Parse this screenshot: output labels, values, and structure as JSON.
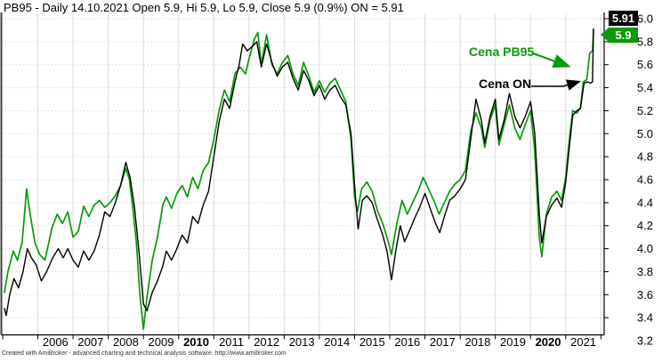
{
  "header": {
    "title": "PB95 - Daily 14.10.2021 Open 5.9, Hi 5.9, Lo 5.9, Close 5.9 (0.9%) ON = 5.91"
  },
  "annotations": {
    "pb95_label": "Cena PB95",
    "on_label": "Cena ON"
  },
  "price_tags": {
    "on": {
      "value": "5.91",
      "bg": "#000000",
      "fg": "#ffffff"
    },
    "pb95": {
      "value": "5.9",
      "bg": "#0a9a0a",
      "fg": "#ffffff"
    }
  },
  "footer": {
    "credit": "Created with AmiBroker - advanced charting and technical analysis software. http://www.amibroker.com"
  },
  "colors": {
    "pb95_line": "#0a9a0a",
    "on_line": "#000000",
    "grid": "#d9d9d9",
    "axis": "#000000",
    "tick_label": "#000000"
  },
  "chart_data": {
    "type": "line",
    "title": "PB95 - Daily 14.10.2021 Open 5.9, Hi 5.9, Lo 5.9, Close 5.9 (0.9%) ON = 5.91",
    "xlabel": "",
    "ylabel": "",
    "x_range_years": [
      2005.0,
      2022.1
    ],
    "ylim": [
      3.2,
      6.0
    ],
    "y_tick_step": 0.2,
    "y_ticks": [
      6.0,
      5.8,
      5.6,
      5.4,
      5.2,
      5.0,
      4.8,
      4.6,
      4.4,
      4.2,
      4.0,
      3.8,
      3.6,
      3.4,
      3.2
    ],
    "x_ticks": [
      {
        "year": 2006,
        "label": "2006",
        "bold": false
      },
      {
        "year": 2007,
        "label": "2007",
        "bold": false
      },
      {
        "year": 2008,
        "label": "2008",
        "bold": false
      },
      {
        "year": 2009,
        "label": "2009",
        "bold": false
      },
      {
        "year": 2010,
        "label": "2010",
        "bold": true
      },
      {
        "year": 2011,
        "label": "2011",
        "bold": false
      },
      {
        "year": 2012,
        "label": "2012",
        "bold": false
      },
      {
        "year": 2013,
        "label": "2013",
        "bold": false
      },
      {
        "year": 2014,
        "label": "2014",
        "bold": false
      },
      {
        "year": 2015,
        "label": "2015",
        "bold": false
      },
      {
        "year": 2016,
        "label": "2016",
        "bold": false
      },
      {
        "year": 2017,
        "label": "2017",
        "bold": false
      },
      {
        "year": 2018,
        "label": "2018",
        "bold": false
      },
      {
        "year": 2019,
        "label": "2019",
        "bold": false
      },
      {
        "year": 2020,
        "label": "2020",
        "bold": true
      },
      {
        "year": 2021,
        "label": "2021",
        "bold": false
      }
    ],
    "grid": {
      "horizontal": "dotted",
      "vertical": "solid"
    },
    "legend_position": "annotated-arrows",
    "series": [
      {
        "name": "Cena PB95",
        "color": "#0a9a0a",
        "last_value": 5.9,
        "data": [
          [
            2005.05,
            3.62
          ],
          [
            2005.15,
            3.8
          ],
          [
            2005.3,
            3.98
          ],
          [
            2005.42,
            3.9
          ],
          [
            2005.55,
            4.05
          ],
          [
            2005.68,
            4.52
          ],
          [
            2005.78,
            4.3
          ],
          [
            2005.92,
            4.05
          ],
          [
            2006.05,
            3.95
          ],
          [
            2006.2,
            3.9
          ],
          [
            2006.4,
            4.18
          ],
          [
            2006.55,
            4.3
          ],
          [
            2006.7,
            4.22
          ],
          [
            2006.85,
            4.32
          ],
          [
            2007.0,
            4.1
          ],
          [
            2007.15,
            4.15
          ],
          [
            2007.3,
            4.37
          ],
          [
            2007.45,
            4.28
          ],
          [
            2007.6,
            4.38
          ],
          [
            2007.75,
            4.42
          ],
          [
            2007.9,
            4.36
          ],
          [
            2008.05,
            4.4
          ],
          [
            2008.2,
            4.46
          ],
          [
            2008.35,
            4.55
          ],
          [
            2008.5,
            4.7
          ],
          [
            2008.6,
            4.6
          ],
          [
            2008.7,
            4.35
          ],
          [
            2008.8,
            4.05
          ],
          [
            2008.9,
            3.6
          ],
          [
            2009.0,
            3.3
          ],
          [
            2009.1,
            3.58
          ],
          [
            2009.25,
            3.9
          ],
          [
            2009.4,
            4.1
          ],
          [
            2009.55,
            4.38
          ],
          [
            2009.65,
            4.45
          ],
          [
            2009.8,
            4.35
          ],
          [
            2009.95,
            4.48
          ],
          [
            2010.1,
            4.55
          ],
          [
            2010.25,
            4.45
          ],
          [
            2010.4,
            4.62
          ],
          [
            2010.55,
            4.52
          ],
          [
            2010.7,
            4.68
          ],
          [
            2010.85,
            4.75
          ],
          [
            2011.0,
            4.95
          ],
          [
            2011.15,
            5.2
          ],
          [
            2011.3,
            5.38
          ],
          [
            2011.45,
            5.28
          ],
          [
            2011.6,
            5.52
          ],
          [
            2011.75,
            5.58
          ],
          [
            2011.9,
            5.52
          ],
          [
            2012.0,
            5.65
          ],
          [
            2012.15,
            5.82
          ],
          [
            2012.25,
            5.88
          ],
          [
            2012.35,
            5.6
          ],
          [
            2012.5,
            5.86
          ],
          [
            2012.65,
            5.6
          ],
          [
            2012.8,
            5.52
          ],
          [
            2012.95,
            5.62
          ],
          [
            2013.1,
            5.68
          ],
          [
            2013.25,
            5.52
          ],
          [
            2013.4,
            5.42
          ],
          [
            2013.55,
            5.62
          ],
          [
            2013.7,
            5.5
          ],
          [
            2013.85,
            5.36
          ],
          [
            2014.0,
            5.46
          ],
          [
            2014.15,
            5.36
          ],
          [
            2014.3,
            5.44
          ],
          [
            2014.45,
            5.48
          ],
          [
            2014.6,
            5.38
          ],
          [
            2014.75,
            5.28
          ],
          [
            2014.9,
            4.95
          ],
          [
            2015.0,
            4.45
          ],
          [
            2015.08,
            4.32
          ],
          [
            2015.2,
            4.52
          ],
          [
            2015.35,
            4.58
          ],
          [
            2015.5,
            4.5
          ],
          [
            2015.65,
            4.33
          ],
          [
            2015.8,
            4.22
          ],
          [
            2015.92,
            4.1
          ],
          [
            2016.05,
            3.95
          ],
          [
            2016.2,
            4.22
          ],
          [
            2016.35,
            4.42
          ],
          [
            2016.5,
            4.3
          ],
          [
            2016.65,
            4.4
          ],
          [
            2016.8,
            4.5
          ],
          [
            2016.95,
            4.62
          ],
          [
            2017.1,
            4.52
          ],
          [
            2017.25,
            4.42
          ],
          [
            2017.4,
            4.3
          ],
          [
            2017.55,
            4.4
          ],
          [
            2017.7,
            4.5
          ],
          [
            2017.85,
            4.56
          ],
          [
            2018.0,
            4.6
          ],
          [
            2018.15,
            4.68
          ],
          [
            2018.3,
            5.02
          ],
          [
            2018.45,
            5.18
          ],
          [
            2018.6,
            5.05
          ],
          [
            2018.7,
            4.88
          ],
          [
            2018.85,
            5.12
          ],
          [
            2019.0,
            5.25
          ],
          [
            2019.1,
            4.9
          ],
          [
            2019.25,
            5.08
          ],
          [
            2019.4,
            5.25
          ],
          [
            2019.55,
            5.05
          ],
          [
            2019.7,
            4.95
          ],
          [
            2019.85,
            5.08
          ],
          [
            2020.0,
            5.2
          ],
          [
            2020.12,
            4.85
          ],
          [
            2020.25,
            4.1
          ],
          [
            2020.32,
            3.93
          ],
          [
            2020.45,
            4.3
          ],
          [
            2020.6,
            4.45
          ],
          [
            2020.75,
            4.5
          ],
          [
            2020.88,
            4.42
          ],
          [
            2021.0,
            4.62
          ],
          [
            2021.1,
            4.95
          ],
          [
            2021.2,
            5.2
          ],
          [
            2021.32,
            5.18
          ],
          [
            2021.42,
            5.23
          ],
          [
            2021.5,
            5.45
          ],
          [
            2021.6,
            5.47
          ],
          [
            2021.68,
            5.7
          ],
          [
            2021.76,
            5.72
          ],
          [
            2021.79,
            5.9
          ]
        ]
      },
      {
        "name": "Cena ON",
        "color": "#000000",
        "last_value": 5.91,
        "data": [
          [
            2005.05,
            3.48
          ],
          [
            2005.1,
            3.42
          ],
          [
            2005.2,
            3.6
          ],
          [
            2005.32,
            3.74
          ],
          [
            2005.45,
            3.66
          ],
          [
            2005.58,
            3.8
          ],
          [
            2005.7,
            4.0
          ],
          [
            2005.82,
            3.92
          ],
          [
            2005.95,
            3.86
          ],
          [
            2006.1,
            3.72
          ],
          [
            2006.25,
            3.8
          ],
          [
            2006.42,
            3.92
          ],
          [
            2006.58,
            4.0
          ],
          [
            2006.72,
            3.92
          ],
          [
            2006.85,
            4.0
          ],
          [
            2007.0,
            3.9
          ],
          [
            2007.15,
            3.84
          ],
          [
            2007.3,
            3.98
          ],
          [
            2007.45,
            3.9
          ],
          [
            2007.6,
            3.98
          ],
          [
            2007.75,
            4.12
          ],
          [
            2007.9,
            4.32
          ],
          [
            2008.05,
            4.28
          ],
          [
            2008.2,
            4.4
          ],
          [
            2008.35,
            4.55
          ],
          [
            2008.5,
            4.75
          ],
          [
            2008.62,
            4.62
          ],
          [
            2008.75,
            4.35
          ],
          [
            2008.88,
            3.95
          ],
          [
            2009.0,
            3.52
          ],
          [
            2009.1,
            3.46
          ],
          [
            2009.25,
            3.62
          ],
          [
            2009.4,
            3.72
          ],
          [
            2009.55,
            3.85
          ],
          [
            2009.65,
            3.98
          ],
          [
            2009.8,
            3.9
          ],
          [
            2009.95,
            4.0
          ],
          [
            2010.1,
            4.12
          ],
          [
            2010.25,
            4.05
          ],
          [
            2010.4,
            4.28
          ],
          [
            2010.55,
            4.22
          ],
          [
            2010.7,
            4.38
          ],
          [
            2010.85,
            4.5
          ],
          [
            2011.0,
            4.8
          ],
          [
            2011.15,
            5.1
          ],
          [
            2011.3,
            5.3
          ],
          [
            2011.45,
            5.22
          ],
          [
            2011.6,
            5.45
          ],
          [
            2011.72,
            5.6
          ],
          [
            2011.82,
            5.78
          ],
          [
            2011.95,
            5.72
          ],
          [
            2012.1,
            5.76
          ],
          [
            2012.22,
            5.8
          ],
          [
            2012.35,
            5.58
          ],
          [
            2012.5,
            5.78
          ],
          [
            2012.65,
            5.62
          ],
          [
            2012.8,
            5.5
          ],
          [
            2012.95,
            5.58
          ],
          [
            2013.1,
            5.62
          ],
          [
            2013.25,
            5.48
          ],
          [
            2013.4,
            5.38
          ],
          [
            2013.55,
            5.55
          ],
          [
            2013.7,
            5.46
          ],
          [
            2013.85,
            5.33
          ],
          [
            2014.0,
            5.42
          ],
          [
            2014.15,
            5.3
          ],
          [
            2014.3,
            5.38
          ],
          [
            2014.45,
            5.42
          ],
          [
            2014.6,
            5.32
          ],
          [
            2014.75,
            5.25
          ],
          [
            2014.9,
            5.0
          ],
          [
            2015.0,
            4.55
          ],
          [
            2015.1,
            4.17
          ],
          [
            2015.22,
            4.42
          ],
          [
            2015.35,
            4.46
          ],
          [
            2015.5,
            4.4
          ],
          [
            2015.65,
            4.25
          ],
          [
            2015.8,
            4.12
          ],
          [
            2015.92,
            3.98
          ],
          [
            2016.05,
            3.73
          ],
          [
            2016.18,
            4.0
          ],
          [
            2016.3,
            4.2
          ],
          [
            2016.42,
            4.06
          ],
          [
            2016.55,
            4.15
          ],
          [
            2016.7,
            4.26
          ],
          [
            2016.85,
            4.36
          ],
          [
            2017.0,
            4.48
          ],
          [
            2017.15,
            4.35
          ],
          [
            2017.3,
            4.22
          ],
          [
            2017.42,
            4.14
          ],
          [
            2017.55,
            4.28
          ],
          [
            2017.7,
            4.42
          ],
          [
            2017.85,
            4.46
          ],
          [
            2018.0,
            4.52
          ],
          [
            2018.15,
            4.6
          ],
          [
            2018.3,
            4.95
          ],
          [
            2018.45,
            5.3
          ],
          [
            2018.6,
            5.12
          ],
          [
            2018.7,
            4.92
          ],
          [
            2018.85,
            5.15
          ],
          [
            2019.0,
            5.3
          ],
          [
            2019.1,
            4.95
          ],
          [
            2019.25,
            5.12
          ],
          [
            2019.4,
            5.35
          ],
          [
            2019.55,
            5.15
          ],
          [
            2019.7,
            5.05
          ],
          [
            2019.85,
            5.15
          ],
          [
            2020.0,
            5.28
          ],
          [
            2020.12,
            5.0
          ],
          [
            2020.25,
            4.3
          ],
          [
            2020.32,
            4.05
          ],
          [
            2020.45,
            4.28
          ],
          [
            2020.6,
            4.38
          ],
          [
            2020.75,
            4.44
          ],
          [
            2020.88,
            4.36
          ],
          [
            2021.0,
            4.58
          ],
          [
            2021.1,
            4.88
          ],
          [
            2021.2,
            5.16
          ],
          [
            2021.32,
            5.2
          ],
          [
            2021.42,
            5.22
          ],
          [
            2021.52,
            5.44
          ],
          [
            2021.62,
            5.45
          ],
          [
            2021.7,
            5.44
          ],
          [
            2021.76,
            5.45
          ],
          [
            2021.79,
            5.91
          ]
        ]
      }
    ]
  }
}
